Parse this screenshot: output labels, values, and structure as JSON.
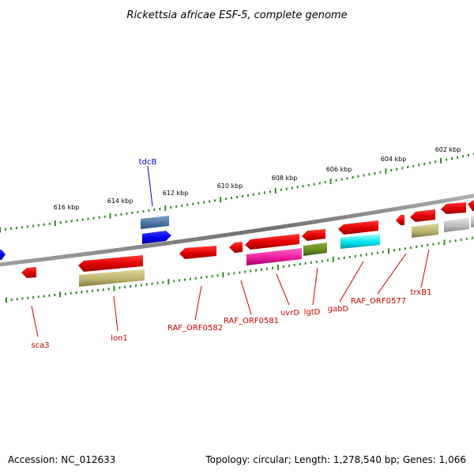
{
  "title": "Rickettsia africae ESF-5, complete genome",
  "footer": {
    "accession": "Accession: NC_012633",
    "topology": "Topology: circular; Length: 1,278,540 bp; Genes: 1,066"
  },
  "colors": {
    "backbone": "#808080",
    "tick": "#2e8b22",
    "label_red": "#cc0000",
    "label_blue": "#0000cc"
  },
  "outer_scale": {
    "labels": [
      "616 kbp",
      "614 kbp",
      "612 kbp",
      "610 kbp",
      "608 kbp",
      "606 kbp",
      "604 kbp",
      "602 kbp"
    ]
  },
  "gene_labels": [
    {
      "id": "tdcB",
      "text": "tdcB",
      "color": "blue"
    },
    {
      "id": "sca3",
      "text": "sca3",
      "color": "red"
    },
    {
      "id": "lon1",
      "text": "lon1",
      "color": "red"
    },
    {
      "id": "RAF_ORF0582",
      "text": "RAF_ORF0582",
      "color": "red"
    },
    {
      "id": "RAF_ORF0581",
      "text": "RAF_ORF0581",
      "color": "red"
    },
    {
      "id": "uvrD",
      "text": "uvrD",
      "color": "red"
    },
    {
      "id": "lgtD",
      "text": "lgtD",
      "color": "red"
    },
    {
      "id": "gabD",
      "text": "gabD",
      "color": "red"
    },
    {
      "id": "RAF_ORF0577",
      "text": "RAF_ORF0577",
      "color": "red"
    },
    {
      "id": "trxB1",
      "text": "trxB1",
      "color": "red"
    }
  ]
}
